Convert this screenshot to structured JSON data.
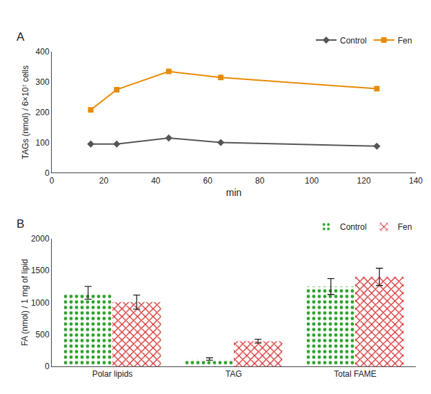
{
  "chart_data": [
    {
      "type": "line",
      "title": "A",
      "xlabel": "min",
      "ylabel": "TAGs (nmol) / 6×10⁷ cells",
      "x": [
        15,
        25,
        45,
        65,
        125
      ],
      "xlim": [
        0,
        140
      ],
      "xticks": [
        0,
        20,
        40,
        60,
        80,
        100,
        120,
        140
      ],
      "ylim": [
        0,
        400
      ],
      "yticks": [
        0,
        100,
        200,
        300,
        400
      ],
      "grid": false,
      "legend": "upper right",
      "series": [
        {
          "name": "Control",
          "color": "#555555",
          "marker": "diamond",
          "values": [
            95,
            95,
            115,
            100,
            88
          ]
        },
        {
          "name": "Fen",
          "color": "#e88a00",
          "marker": "square",
          "values": [
            208,
            275,
            335,
            315,
            278
          ]
        }
      ]
    },
    {
      "type": "bar",
      "title": "B",
      "ylabel": "FA (nmol) / 1 mg of lipid",
      "categories": [
        "Polar lipids",
        "TAG",
        "Total FAME"
      ],
      "ylim": [
        0,
        2000
      ],
      "yticks": [
        0,
        500,
        1000,
        1500,
        2000
      ],
      "grid": false,
      "legend": "upper right",
      "series": [
        {
          "name": "Control",
          "values": [
            1150,
            115,
            1250
          ],
          "errors": [
            100,
            20,
            125
          ]
        },
        {
          "name": "Fen",
          "values": [
            1005,
            395,
            1400
          ],
          "errors": [
            110,
            30,
            135
          ]
        }
      ]
    }
  ]
}
